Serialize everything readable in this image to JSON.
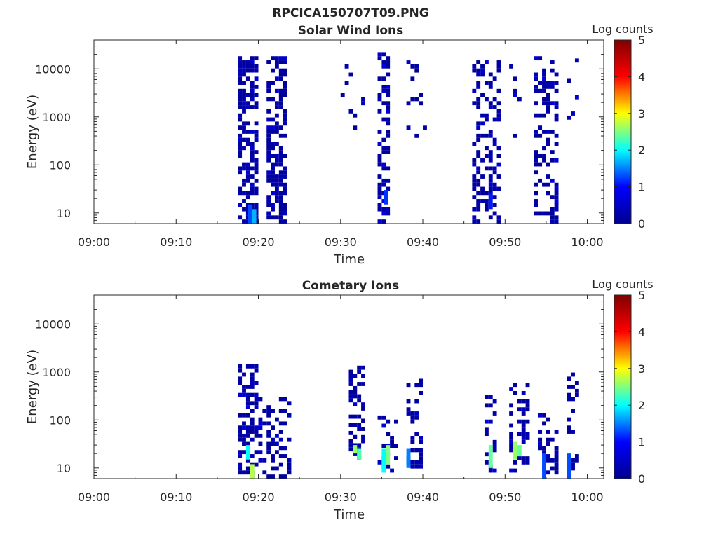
{
  "figure": {
    "title": "RPCICA150707T09.PNG"
  },
  "colormap": {
    "name": "jet",
    "stops": [
      "#00008f",
      "#0000ff",
      "#00ffff",
      "#ffff00",
      "#ff0000",
      "#800000"
    ]
  },
  "chart_data": [
    {
      "type": "heatmap",
      "title": "Solar Wind Ions",
      "xlabel": "Time",
      "ylabel": "Energy (eV)",
      "yscale": "log",
      "xlim": [
        "09:00",
        "10:02"
      ],
      "ylim": [
        6,
        40000
      ],
      "x_ticks": [
        "09:00",
        "09:10",
        "09:20",
        "09:30",
        "09:40",
        "09:50",
        "10:00"
      ],
      "y_ticks": [
        "10",
        "100",
        "1000",
        "10000"
      ],
      "colorbar": {
        "label": "Log counts",
        "range": [
          0,
          5
        ],
        "ticks": [
          "0",
          "1",
          "2",
          "3",
          "4",
          "5"
        ]
      },
      "cell_duration_min": 0.5,
      "clusters": [
        {
          "t_start": "09:17:30",
          "t_end": "09:20:00",
          "e_min": 6,
          "e_max": 18000,
          "density": 0.62,
          "cores": [
            {
              "t": "09:18:45",
              "e_min": 6,
              "e_max": 15,
              "level": 1.3
            },
            {
              "t": "09:19:15",
              "e_min": 6,
              "e_max": 12,
              "level": 1.7
            }
          ]
        },
        {
          "t_start": "09:21:00",
          "t_end": "09:23:30",
          "e_min": 6,
          "e_max": 18000,
          "density": 0.62,
          "cores": []
        },
        {
          "t_start": "09:30:00",
          "t_end": "09:33:00",
          "e_min": 300,
          "e_max": 15000,
          "density": 0.07,
          "cores": []
        },
        {
          "t_start": "09:34:30",
          "t_end": "09:36:00",
          "e_min": 6,
          "e_max": 20000,
          "density": 0.42,
          "cores": [
            {
              "t": "09:35:15",
              "e_min": 15,
              "e_max": 30,
              "level": 1.2
            }
          ]
        },
        {
          "t_start": "09:38:00",
          "t_end": "09:40:30",
          "e_min": 300,
          "e_max": 15000,
          "density": 0.13,
          "cores": []
        },
        {
          "t_start": "09:46:00",
          "t_end": "09:49:30",
          "e_min": 6,
          "e_max": 15000,
          "density": 0.36,
          "cores": [
            {
              "t": "09:48:00",
              "e_min": 12,
              "e_max": 25,
              "level": 1.1
            }
          ]
        },
        {
          "t_start": "09:50:30",
          "t_end": "09:52:00",
          "e_min": 300,
          "e_max": 12000,
          "density": 0.12,
          "cores": []
        },
        {
          "t_start": "09:53:30",
          "t_end": "09:56:30",
          "e_min": 6,
          "e_max": 18000,
          "density": 0.38,
          "cores": []
        },
        {
          "t_start": "09:57:30",
          "t_end": "09:59:00",
          "e_min": 400,
          "e_max": 15000,
          "density": 0.14,
          "cores": []
        }
      ]
    },
    {
      "type": "heatmap",
      "title": "Cometary Ions",
      "xlabel": "Time",
      "ylabel": "Energy (eV)",
      "yscale": "log",
      "xlim": [
        "09:00",
        "10:02"
      ],
      "ylim": [
        6,
        40000
      ],
      "x_ticks": [
        "09:00",
        "09:10",
        "09:20",
        "09:30",
        "09:40",
        "09:50",
        "10:00"
      ],
      "y_ticks": [
        "10",
        "100",
        "1000",
        "10000"
      ],
      "colorbar": {
        "label": "Log counts",
        "range": [
          0,
          5
        ],
        "ticks": [
          "0",
          "1",
          "2",
          "3",
          "4",
          "5"
        ]
      },
      "cell_duration_min": 0.5,
      "clusters": [
        {
          "t_start": "09:17:30",
          "t_end": "09:20:00",
          "e_min": 6,
          "e_max": 1200,
          "density": 0.55,
          "cores": [
            {
              "t": "09:18:30",
              "e_min": 15,
              "e_max": 30,
              "level": 2.0
            },
            {
              "t": "09:19:00",
              "e_min": 6,
              "e_max": 12,
              "level": 2.7
            }
          ]
        },
        {
          "t_start": "09:20:00",
          "t_end": "09:24:00",
          "e_min": 6,
          "e_max": 250,
          "density": 0.38,
          "cores": []
        },
        {
          "t_start": "09:31:00",
          "t_end": "09:33:00",
          "e_min": 15,
          "e_max": 1200,
          "density": 0.35,
          "cores": [
            {
              "t": "09:31:30",
              "e_min": 20,
              "e_max": 30,
              "level": 2.6
            },
            {
              "t": "09:32:00",
              "e_min": 15,
              "e_max": 25,
              "level": 2.3
            }
          ]
        },
        {
          "t_start": "09:34:30",
          "t_end": "09:37:00",
          "e_min": 8,
          "e_max": 120,
          "density": 0.32,
          "cores": [
            {
              "t": "09:35:00",
              "e_min": 8,
              "e_max": 25,
              "level": 2.0
            },
            {
              "t": "09:35:30",
              "e_min": 12,
              "e_max": 30,
              "level": 2.5
            }
          ]
        },
        {
          "t_start": "09:38:00",
          "t_end": "09:40:00",
          "e_min": 8,
          "e_max": 700,
          "density": 0.3,
          "cores": [
            {
              "t": "09:38:00",
              "e_min": 10,
              "e_max": 25,
              "level": 1.5
            }
          ]
        },
        {
          "t_start": "09:47:30",
          "t_end": "09:49:00",
          "e_min": 8,
          "e_max": 300,
          "density": 0.3,
          "cores": [
            {
              "t": "09:48:00",
              "e_min": 10,
              "e_max": 30,
              "level": 2.4
            }
          ]
        },
        {
          "t_start": "09:50:30",
          "t_end": "09:53:00",
          "e_min": 8,
          "e_max": 500,
          "density": 0.36,
          "cores": [
            {
              "t": "09:51:00",
              "e_min": 15,
              "e_max": 35,
              "level": 2.6
            },
            {
              "t": "09:51:30",
              "e_min": 18,
              "e_max": 30,
              "level": 2.4
            }
          ]
        },
        {
          "t_start": "09:54:00",
          "t_end": "09:56:30",
          "e_min": 6,
          "e_max": 120,
          "density": 0.3,
          "cores": [
            {
              "t": "09:54:30",
              "e_min": 6,
              "e_max": 20,
              "level": 1.3
            }
          ]
        },
        {
          "t_start": "09:57:30",
          "t_end": "09:59:00",
          "e_min": 6,
          "e_max": 1200,
          "density": 0.33,
          "cores": [
            {
              "t": "09:57:30",
              "e_min": 6,
              "e_max": 20,
              "level": 1.3
            }
          ]
        }
      ]
    }
  ]
}
